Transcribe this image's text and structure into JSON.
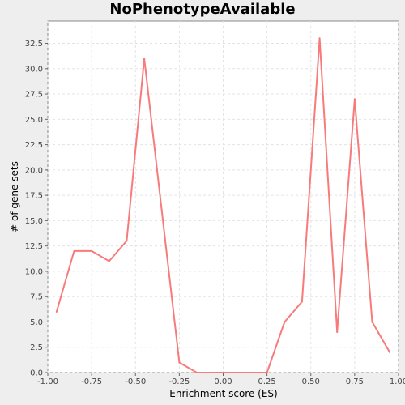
{
  "chart_data": {
    "type": "line",
    "title": "NoPhenotypeAvailable",
    "xlabel": "Enrichment score (ES)",
    "ylabel": "# of gene sets",
    "xlim": [
      -1.0,
      1.0
    ],
    "ylim": [
      0,
      34.7
    ],
    "x_ticks": [
      "-1.00",
      "-0.75",
      "-0.50",
      "-0.25",
      "0.00",
      "0.25",
      "0.50",
      "0.75",
      "1.00"
    ],
    "x_tick_values": [
      -1.0,
      -0.75,
      -0.5,
      -0.25,
      0.0,
      0.25,
      0.5,
      0.75,
      1.0
    ],
    "y_ticks": [
      "0.0",
      "2.5",
      "5.0",
      "7.5",
      "10.0",
      "12.5",
      "15.0",
      "17.5",
      "20.0",
      "22.5",
      "25.0",
      "27.5",
      "30.0",
      "32.5"
    ],
    "y_tick_values": [
      0,
      2.5,
      5,
      7.5,
      10,
      12.5,
      15,
      17.5,
      20,
      22.5,
      25,
      27.5,
      30,
      32.5
    ],
    "grid": true,
    "series": [
      {
        "color": "#f87b7b",
        "x": [
          -0.95,
          -0.85,
          -0.75,
          -0.65,
          -0.55,
          -0.45,
          -0.35,
          -0.25,
          -0.15,
          -0.05,
          0.05,
          0.15,
          0.25,
          0.35,
          0.45,
          0.55,
          0.65,
          0.75,
          0.85,
          0.95
        ],
        "y": [
          6,
          12,
          12,
          11,
          13,
          31,
          16,
          1,
          0,
          0,
          0,
          0,
          0,
          5,
          7,
          33,
          4,
          27,
          5,
          2
        ]
      }
    ]
  }
}
